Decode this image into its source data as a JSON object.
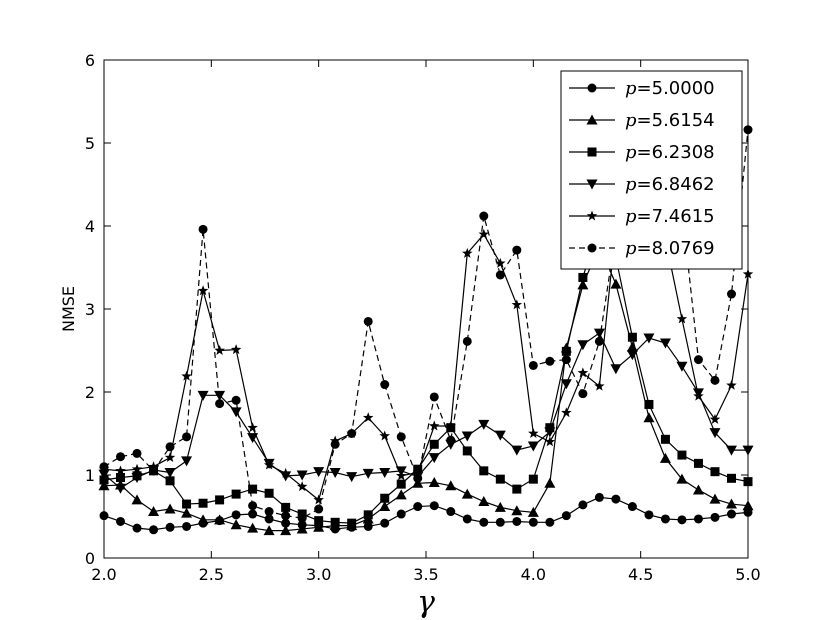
{
  "chart_data": {
    "type": "line",
    "xlabel": "γ",
    "ylabel": "NMSE",
    "xlim": [
      2.0,
      5.0
    ],
    "ylim": [
      0,
      6
    ],
    "xticks": [
      "2.0",
      "2.5",
      "3.0",
      "3.5",
      "4.0",
      "4.5",
      "5.0"
    ],
    "yticks": [
      "0",
      "1",
      "2",
      "3",
      "4",
      "5",
      "6"
    ],
    "grid": false,
    "legend_position": "top-right",
    "x": [
      2.0,
      2.0769,
      2.1538,
      2.2308,
      2.3077,
      2.3846,
      2.4615,
      2.5385,
      2.6154,
      2.6923,
      2.7692,
      2.8462,
      2.9231,
      3.0,
      3.0769,
      3.1538,
      3.2308,
      3.3077,
      3.3846,
      3.4615,
      3.5385,
      3.6154,
      3.6923,
      3.7692,
      3.8462,
      3.9231,
      4.0,
      4.0769,
      4.1538,
      4.2308,
      4.3077,
      4.3846,
      4.4615,
      4.5385,
      4.6154,
      4.6923,
      4.7692,
      4.8462,
      4.9231,
      5.0
    ],
    "series": [
      {
        "name": "=5.0000",
        "marker": "circle",
        "dash": false,
        "values": [
          0.51,
          0.44,
          0.36,
          0.34,
          0.37,
          0.38,
          0.42,
          0.45,
          0.52,
          0.53,
          0.47,
          0.42,
          0.4,
          0.39,
          0.35,
          0.37,
          0.38,
          0.42,
          0.53,
          0.62,
          0.63,
          0.56,
          0.47,
          0.43,
          0.43,
          0.44,
          0.43,
          0.43,
          0.51,
          0.64,
          0.73,
          0.71,
          0.62,
          0.52,
          0.47,
          0.46,
          0.47,
          0.49,
          0.53,
          0.55
        ]
      },
      {
        "name": "=5.6154",
        "marker": "triangle-up",
        "dash": false,
        "values": [
          0.87,
          0.88,
          0.7,
          0.56,
          0.59,
          0.54,
          0.46,
          0.46,
          0.4,
          0.36,
          0.33,
          0.33,
          0.35,
          0.37,
          0.39,
          0.39,
          0.47,
          0.62,
          0.76,
          0.9,
          0.91,
          0.87,
          0.77,
          0.68,
          0.61,
          0.57,
          0.55,
          0.9,
          2.53,
          3.29,
          3.76,
          3.3,
          2.54,
          1.69,
          1.2,
          0.95,
          0.82,
          0.71,
          0.65,
          0.63
        ]
      },
      {
        "name": "=6.2308",
        "marker": "square",
        "dash": false,
        "values": [
          0.94,
          0.97,
          0.99,
          1.05,
          0.93,
          0.65,
          0.66,
          0.7,
          0.77,
          0.83,
          0.78,
          0.61,
          0.53,
          0.45,
          0.43,
          0.42,
          0.52,
          0.72,
          0.89,
          1.07,
          1.37,
          1.57,
          1.29,
          1.05,
          0.95,
          0.83,
          0.95,
          1.57,
          2.49,
          3.38,
          4.04,
          3.62,
          2.66,
          1.85,
          1.43,
          1.24,
          1.14,
          1.04,
          0.96,
          0.92
        ]
      },
      {
        "name": "=6.8462",
        "marker": "triangle-down",
        "dash": false,
        "values": [
          1.01,
          0.84,
          0.97,
          1.06,
          1.03,
          1.17,
          1.96,
          1.96,
          1.76,
          1.45,
          1.14,
          0.99,
          1.0,
          1.04,
          1.03,
          0.98,
          1.02,
          1.03,
          1.05,
          0.98,
          1.21,
          1.37,
          1.47,
          1.61,
          1.48,
          1.3,
          1.35,
          1.52,
          2.1,
          2.57,
          2.71,
          2.28,
          2.45,
          2.65,
          2.59,
          2.31,
          1.99,
          1.51,
          1.3,
          1.3
        ]
      },
      {
        "name": "=7.4615",
        "marker": "star",
        "dash": false,
        "values": [
          1.07,
          1.05,
          1.07,
          1.1,
          1.21,
          2.19,
          3.22,
          2.5,
          2.51,
          1.57,
          1.12,
          1.02,
          0.86,
          0.7,
          1.41,
          1.5,
          1.69,
          1.47,
          0.99,
          1.03,
          1.59,
          1.59,
          3.67,
          3.9,
          3.55,
          3.05,
          1.5,
          1.4,
          1.75,
          2.23,
          2.07,
          3.99,
          4.95,
          4.75,
          3.84,
          2.88,
          1.95,
          1.67,
          2.08,
          3.42
        ]
      },
      {
        "name": "=8.0769",
        "marker": "circle",
        "dash": true,
        "values": [
          1.1,
          1.22,
          1.26,
          1.05,
          1.34,
          1.46,
          3.96,
          1.86,
          1.9,
          0.63,
          0.56,
          0.51,
          0.48,
          0.59,
          1.37,
          1.5,
          2.85,
          2.09,
          1.46,
          0.96,
          1.94,
          1.42,
          2.61,
          4.12,
          3.41,
          3.71,
          2.32,
          2.37,
          2.39,
          1.98,
          2.61,
          3.92,
          3.57,
          4.47,
          4.85,
          4.21,
          2.39,
          2.14,
          3.18,
          5.16
        ]
      }
    ]
  },
  "legend": {
    "p_symbol": "p"
  },
  "colors": {
    "line": "#000000",
    "background": "#ffffff"
  }
}
